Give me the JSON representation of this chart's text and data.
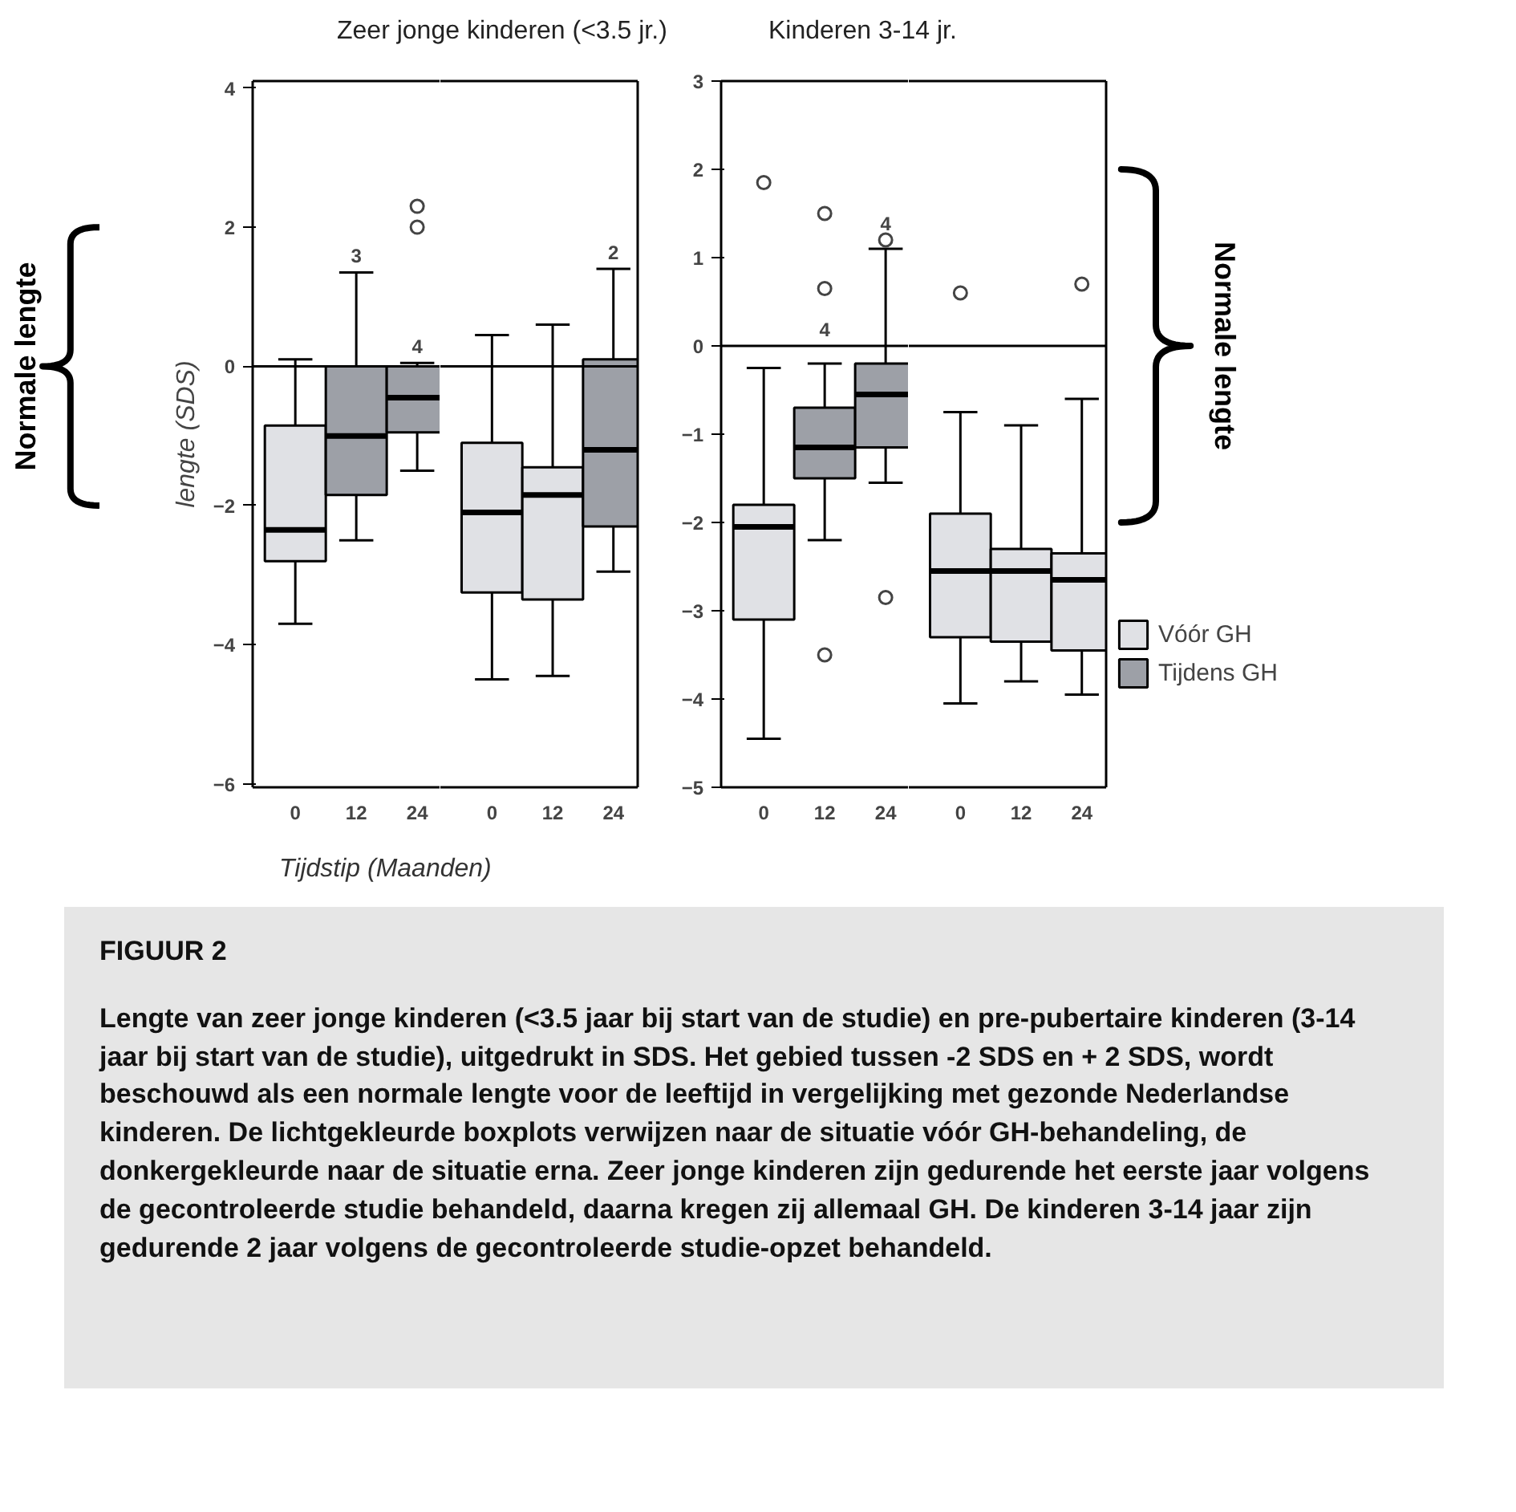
{
  "chart_data": [
    {
      "type": "box",
      "title": "Zeer jonge kinderen (<3.5 jr.)",
      "xlabel": "Tijdstip (Maanden)",
      "ylabel": "lengte (SDS)",
      "categories": [
        "0",
        "12",
        "24"
      ],
      "ylim": [
        -6.05,
        4.1
      ],
      "yticks": [
        -6,
        -4,
        -2,
        0,
        2,
        4
      ],
      "grid": false,
      "ref_lines": [
        {
          "axis": "y",
          "value": 0
        }
      ],
      "series": [
        {
          "color": "#e0e1e5",
          "boxes": [
            {
              "low": -3.7,
              "q1": -2.8,
              "median": -2.35,
              "q3": -0.85,
              "high": 0.1
            },
            null,
            null
          ]
        },
        {
          "color": "#9da0a7",
          "boxes": [
            null,
            {
              "low": -2.5,
              "q1": -1.85,
              "median": -1.0,
              "q3": 0,
              "high": 1.35
            },
            {
              "low": -1.5,
              "q1": -0.95,
              "median": -0.45,
              "q3": 0,
              "high": 0.05,
              "outliers": [
                2.3,
                2.0
              ]
            }
          ]
        }
      ],
      "annotations": [
        {
          "text": "3",
          "x": "12",
          "y": 1.35
        },
        {
          "text": "4",
          "x": "24",
          "y": 0.05
        },
        "Normale lengte"
      ]
    },
    {
      "type": "box",
      "tick_labels": "x",
      "categories": [
        "0",
        "12",
        "24"
      ],
      "ylim": [
        -6.05,
        4.1
      ],
      "yticks": [
        -6,
        -4,
        -2,
        0,
        2,
        4
      ],
      "grid": false,
      "ref_lines": [
        {
          "axis": "y",
          "value": 0
        }
      ],
      "series": [
        {
          "color": "#e0e1e5",
          "boxes": [
            {
              "low": -4.5,
              "q1": -3.25,
              "median": -2.1,
              "q3": -1.1,
              "high": 0.45
            },
            {
              "low": -4.45,
              "q1": -3.35,
              "median": -1.85,
              "q3": -1.45,
              "high": 0.6
            },
            null
          ]
        },
        {
          "color": "#9da0a7",
          "boxes": [
            null,
            null,
            {
              "low": -2.95,
              "q1": -2.3,
              "median": -1.2,
              "q3": 0.1,
              "high": 1.4
            }
          ]
        }
      ],
      "annotations": [
        {
          "text": "2",
          "x": "24",
          "y": 1.4
        }
      ]
    },
    {
      "type": "box",
      "title": "Kinderen 3-14 jr.",
      "categories": [
        "0",
        "12",
        "24"
      ],
      "ylim": [
        -5,
        3
      ],
      "yticks": [
        -5,
        -4,
        -3,
        -2,
        -1,
        0,
        1,
        2,
        3
      ],
      "grid": false,
      "ref_lines": [
        {
          "axis": "y",
          "value": 0
        }
      ],
      "series": [
        {
          "color": "#e0e1e5",
          "boxes": [
            {
              "low": -4.45,
              "q1": -3.1,
              "median": -2.05,
              "q3": -1.8,
              "high": -0.25,
              "outliers": [
                1.85
              ]
            },
            null,
            null
          ]
        },
        {
          "color": "#9da0a7",
          "boxes": [
            null,
            {
              "low": -2.2,
              "q1": -1.5,
              "median": -1.15,
              "q3": -0.7,
              "high": -0.2,
              "outliers": [
                1.5,
                0.65,
                -3.5
              ]
            },
            {
              "low": -1.55,
              "q1": -1.15,
              "median": -0.55,
              "q3": -0.2,
              "high": 1.1,
              "outliers": [
                1.2,
                -2.85
              ]
            }
          ]
        }
      ],
      "annotations": [
        {
          "text": "4",
          "x": "12",
          "y": -0.2
        },
        {
          "text": "4",
          "x": "24",
          "y": 1.1
        }
      ]
    },
    {
      "type": "box",
      "tick_labels": "x",
      "legend": "right",
      "categories": [
        "0",
        "12",
        "24"
      ],
      "ylim": [
        -5,
        3
      ],
      "yticks": [
        -5,
        -4,
        -3,
        -2,
        -1,
        0,
        1,
        2,
        3
      ],
      "grid": false,
      "ref_lines": [
        {
          "axis": "y",
          "value": 0
        }
      ],
      "series": [
        {
          "name": "Vóór GH",
          "color": "#e0e1e5",
          "boxes": [
            {
              "low": -4.05,
              "q1": -3.3,
              "median": -2.55,
              "q3": -1.9,
              "high": -0.75,
              "outliers": [
                0.6
              ]
            },
            {
              "low": -3.8,
              "q1": -3.35,
              "median": -2.55,
              "q3": -2.3,
              "high": -0.9
            },
            {
              "low": -3.95,
              "q1": -3.45,
              "median": -2.65,
              "q3": -2.35,
              "high": -0.6,
              "outliers": [
                0.7
              ]
            }
          ]
        },
        {
          "name": "Tijdens GH",
          "color": "#9da0a7",
          "boxes": [
            null,
            null,
            null
          ]
        }
      ],
      "annotations": [
        "Normale lengte",
        "FIGUUR 2",
        "Lengte van zeer jonge kinderen (<3.5 jaar bij start van de studie) en pre-pubertaire kinderen (3-14 jaar bij start van de studie), uitgedrukt in SDS. Het gebied tussen -2 SDS en + 2 SDS, wordt beschouwd als een normale lengte voor de leeftijd in vergelijking met gezonde Nederlandse kinderen. De lichtgekleurde boxplots verwijzen naar de situatie vóór GH-behandeling, de donkergekleurde naar de situatie erna. Zeer jonge kinderen zijn gedurende het eerste jaar volgens de gecontroleerde studie behandeld, daarna kregen zij allemaal GH. De kinderen 3-14 jaar zijn gedurende 2 jaar volgens de gecontroleerde studie-opzet behandeld."
      ]
    }
  ]
}
